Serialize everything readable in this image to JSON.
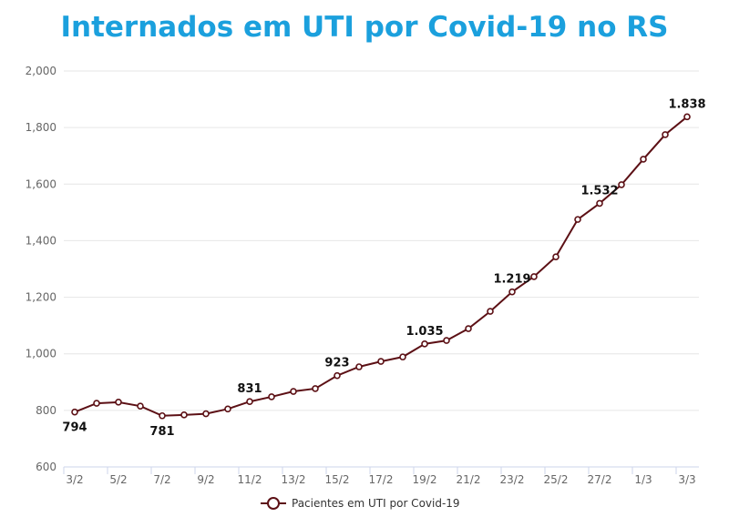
{
  "chart_data": {
    "type": "line",
    "title": "Internados em UTI por Covid-19 no RS",
    "xlabel": "",
    "ylabel": "",
    "categories": [
      "3/2",
      "4/2",
      "5/2",
      "6/2",
      "7/2",
      "8/2",
      "9/2",
      "10/2",
      "11/2",
      "12/2",
      "13/2",
      "14/2",
      "15/2",
      "16/2",
      "17/2",
      "18/2",
      "19/2",
      "20/2",
      "21/2",
      "22/2",
      "23/2",
      "24/2",
      "25/2",
      "26/2",
      "27/2",
      "28/2",
      "1/3",
      "2/3",
      "3/3"
    ],
    "tick_labels_x": [
      "3/2",
      "5/2",
      "7/2",
      "9/2",
      "11/2",
      "13/2",
      "15/2",
      "17/2",
      "19/2",
      "21/2",
      "23/2",
      "25/2",
      "27/2",
      "1/3",
      "3/3"
    ],
    "tick_labels_y": [
      "600",
      "800",
      "1,000",
      "1,200",
      "1,400",
      "1,600",
      "1,800",
      "2,000"
    ],
    "ylim": [
      600,
      2000
    ],
    "grid": true,
    "legend_position": "bottom",
    "series": [
      {
        "name": "Pacientes em UTI por Covid-19",
        "color": "#5c1015",
        "values": [
          794,
          825,
          829,
          815,
          781,
          784,
          788,
          805,
          831,
          848,
          867,
          877,
          923,
          954,
          973,
          989,
          1035,
          1047,
          1089,
          1150,
          1219,
          1273,
          1343,
          1475,
          1532,
          1598,
          1688,
          1775,
          1838
        ]
      }
    ],
    "data_labels": [
      {
        "category": "3/2",
        "text": "794",
        "position": "below"
      },
      {
        "category": "7/2",
        "text": "781",
        "position": "below"
      },
      {
        "category": "11/2",
        "text": "831",
        "position": "above"
      },
      {
        "category": "15/2",
        "text": "923",
        "position": "above"
      },
      {
        "category": "19/2",
        "text": "1.035",
        "position": "above"
      },
      {
        "category": "23/2",
        "text": "1.219",
        "position": "above"
      },
      {
        "category": "27/2",
        "text": "1.532",
        "position": "above"
      },
      {
        "category": "3/3",
        "text": "1.838",
        "position": "above"
      }
    ]
  }
}
